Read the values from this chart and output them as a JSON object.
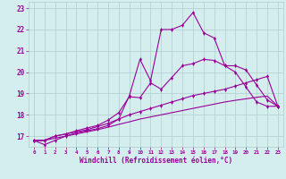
{
  "x": [
    0,
    1,
    2,
    3,
    4,
    5,
    6,
    7,
    8,
    9,
    10,
    11,
    12,
    13,
    14,
    15,
    16,
    17,
    18,
    19,
    20,
    21,
    22,
    23
  ],
  "line_jagged": [
    16.8,
    16.6,
    16.8,
    17.0,
    17.15,
    17.25,
    17.35,
    17.5,
    17.8,
    18.9,
    20.6,
    19.6,
    22.0,
    22.0,
    22.2,
    22.8,
    21.85,
    21.6,
    20.3,
    20.0,
    19.3,
    18.6,
    18.4,
    18.4
  ],
  "line_mid": [
    16.8,
    16.8,
    17.0,
    17.1,
    17.25,
    17.38,
    17.5,
    17.75,
    18.1,
    18.85,
    18.8,
    19.5,
    19.2,
    19.75,
    20.3,
    20.4,
    20.6,
    20.55,
    20.3,
    20.3,
    20.1,
    19.4,
    18.7,
    18.4
  ],
  "line_lower": [
    16.8,
    16.8,
    17.0,
    17.1,
    17.2,
    17.3,
    17.45,
    17.6,
    17.8,
    18.0,
    18.15,
    18.3,
    18.45,
    18.6,
    18.75,
    18.9,
    19.0,
    19.1,
    19.2,
    19.35,
    19.5,
    19.65,
    19.8,
    18.4
  ],
  "line_flat": [
    16.8,
    16.8,
    16.9,
    17.0,
    17.1,
    17.2,
    17.3,
    17.42,
    17.55,
    17.67,
    17.8,
    17.9,
    18.0,
    18.1,
    18.2,
    18.3,
    18.4,
    18.5,
    18.6,
    18.68,
    18.75,
    18.82,
    18.88,
    18.4
  ],
  "color": "#990099",
  "bg_color": "#d4eeee",
  "grid_color": "#b0cccc",
  "ylim": [
    16.5,
    23.3
  ],
  "xlim": [
    -0.5,
    23.5
  ],
  "yticks": [
    17,
    18,
    19,
    20,
    21,
    22,
    23
  ],
  "xticks": [
    0,
    1,
    2,
    3,
    4,
    5,
    6,
    7,
    8,
    9,
    10,
    11,
    12,
    13,
    14,
    15,
    16,
    17,
    18,
    19,
    20,
    21,
    22,
    23
  ],
  "xlabel": "Windchill (Refroidissement éolien,°C)",
  "markersize": 2.5,
  "linewidth": 0.8
}
